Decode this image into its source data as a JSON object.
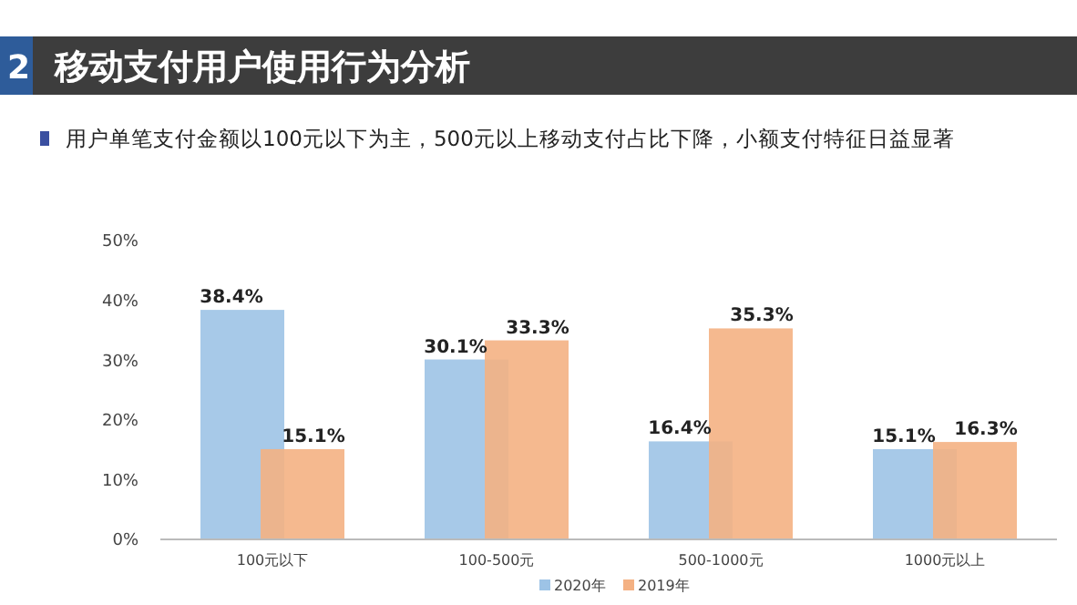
{
  "chart_data": {
    "type": "bar",
    "title": "移动支付用户使用行为分析",
    "subtitle": "用户单笔支付金额以100元以下为主，500元以上移动支付占比下降，小额支付特征日益显著",
    "annotations": [
      "2"
    ],
    "categories": [
      "100元以下",
      "100-500元",
      "500-1000元",
      "1000元以上"
    ],
    "series": [
      {
        "name": "2020年",
        "color": "#9dc3e6",
        "values": [
          38.4,
          30.1,
          16.4,
          15.1
        ],
        "value_labels": [
          "38.4%",
          "30.1%",
          "16.4%",
          "15.1%"
        ]
      },
      {
        "name": "2019年",
        "color": "#f4b183",
        "values": [
          15.1,
          33.3,
          35.3,
          16.3
        ],
        "value_labels": [
          "15.1%",
          "33.3%",
          "35.3%",
          "16.3%"
        ]
      }
    ],
    "ylim": [
      0,
      50
    ],
    "yticks": [
      {
        "value": 0,
        "label": "0%"
      },
      {
        "value": 10,
        "label": "10%"
      },
      {
        "value": 20,
        "label": "20%"
      },
      {
        "value": 30,
        "label": "30%"
      },
      {
        "value": 40,
        "label": "40%"
      },
      {
        "value": 50,
        "label": "50%"
      }
    ],
    "legend": "bottom",
    "grid": false
  }
}
